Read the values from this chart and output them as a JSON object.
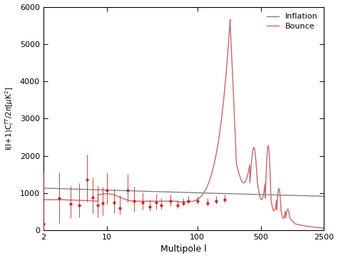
{
  "xlabel": "Multipole l",
  "xlim": [
    2,
    2500
  ],
  "ylim": [
    0,
    6000
  ],
  "inflation_color": "#777777",
  "bounce_color": "#cc6666",
  "data_color": "#cc2222",
  "yticks": [
    0,
    1000,
    2000,
    3000,
    4000,
    5000,
    6000
  ],
  "xticks": [
    2,
    10,
    100,
    500,
    2500
  ],
  "xticklabels": [
    "2",
    "10",
    "100",
    "500",
    "2500"
  ],
  "data_points": {
    "l": [
      2,
      3,
      4,
      5,
      6,
      7,
      8,
      9,
      10,
      12,
      14,
      17,
      20,
      25,
      30,
      35,
      40,
      50,
      60,
      70,
      80,
      100,
      130,
      160,
      200
    ],
    "Cl": [
      170,
      870,
      700,
      680,
      1350,
      880,
      680,
      730,
      1080,
      740,
      600,
      1080,
      780,
      740,
      640,
      740,
      680,
      780,
      680,
      730,
      780,
      780,
      730,
      780,
      830
    ],
    "err_low": [
      600,
      680,
      380,
      330,
      590,
      430,
      330,
      330,
      380,
      280,
      180,
      330,
      280,
      180,
      130,
      180,
      130,
      130,
      80,
      80,
      80,
      80,
      80,
      80,
      80
    ],
    "err_high": [
      1380,
      680,
      480,
      580,
      680,
      530,
      530,
      430,
      480,
      380,
      330,
      430,
      380,
      280,
      180,
      230,
      180,
      180,
      130,
      130,
      130,
      130,
      130,
      130,
      130
    ]
  }
}
